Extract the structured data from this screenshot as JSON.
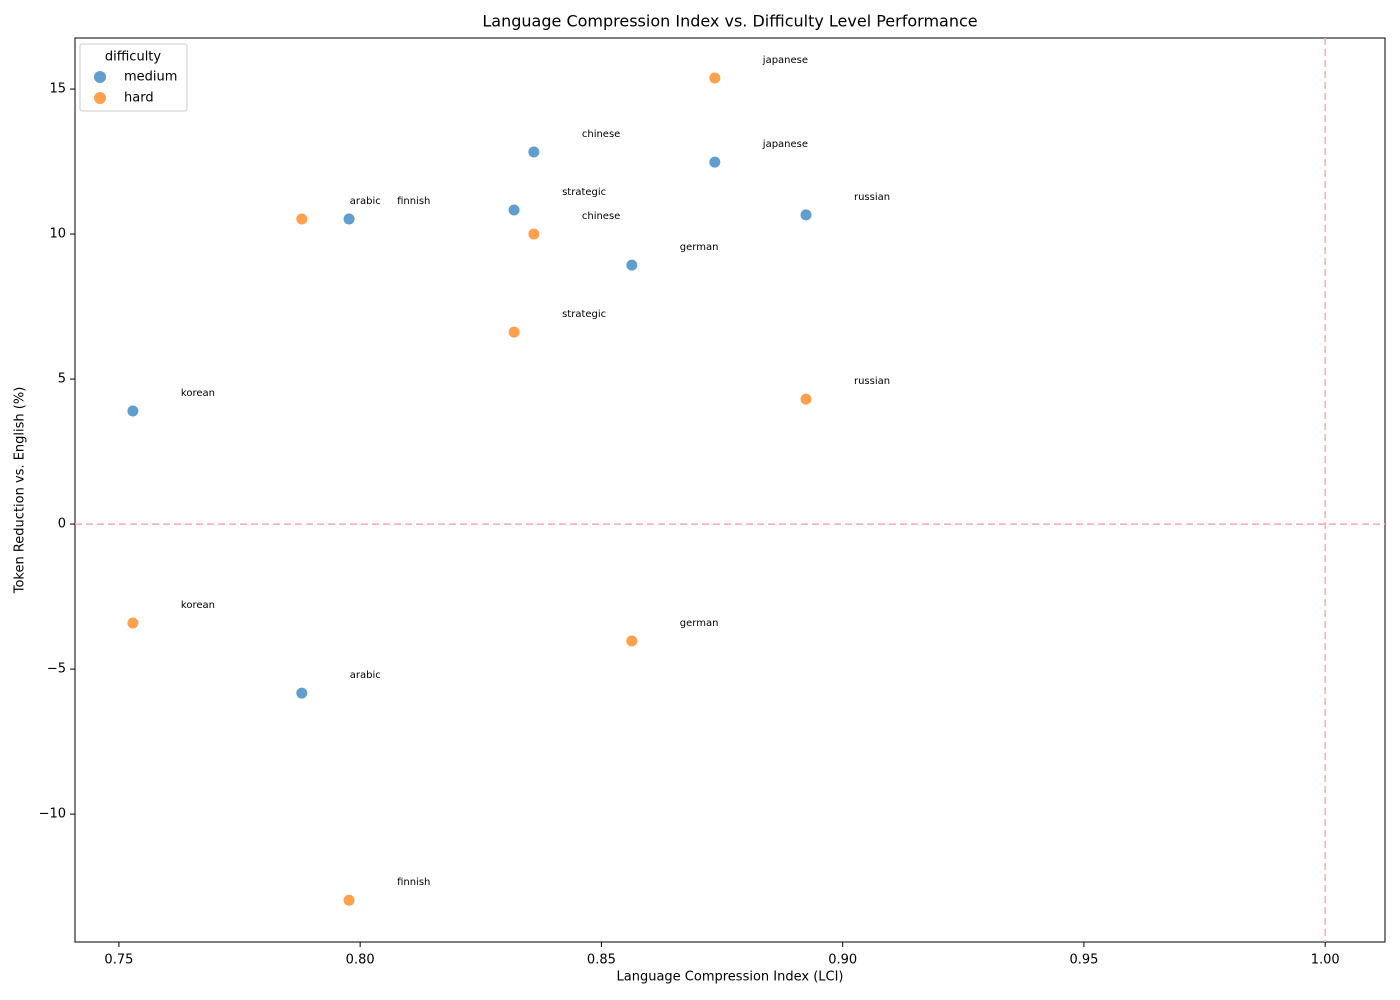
{
  "chart_data": {
    "type": "scatter",
    "title": "Language Compression Index vs. Difficulty Level Performance",
    "x_label": "Language Compression Index (LCI)",
    "y_label": "Token Reduction vs. English (%)",
    "legend_title": "difficulty",
    "legend_position": "upper left",
    "xlim": [
      0.7409,
      1.0124
    ],
    "ylim": [
      -14.41,
      16.76
    ],
    "xticks": [
      0.75,
      {
        "value": 0.8,
        "label": "0.80"
      },
      0.85,
      {
        "value": 0.9,
        "label": "0.90"
      },
      0.95,
      {
        "value": 1.0,
        "label": "1.00"
      }
    ],
    "yticks": [
      {
        "value": -10,
        "label": "−10"
      },
      {
        "value": -5,
        "label": "−5"
      },
      0,
      5,
      10,
      15
    ],
    "reference_lines": {
      "y": 0,
      "x": 1.0,
      "color": "#ffaaaa"
    },
    "series": [
      {
        "name": "medium",
        "color": "#5f9ecf",
        "labels": [
          "korean",
          "arabic",
          "finnish",
          "strategic",
          "chinese",
          "german",
          "japanese",
          "russian"
        ],
        "x": [
          0.7529,
          0.7879,
          0.7977,
          0.8319,
          0.836,
          0.8563,
          0.8735,
          0.8924
        ],
        "values": [
          3.9,
          -5.83,
          10.52,
          10.83,
          12.83,
          8.93,
          12.48,
          10.66
        ]
      },
      {
        "name": "hard",
        "color": "#ffa04d",
        "labels": [
          "korean",
          "arabic",
          "finnish",
          "strategic",
          "chinese",
          "german",
          "japanese",
          "russian"
        ],
        "x": [
          0.7529,
          0.7879,
          0.7977,
          0.8319,
          0.836,
          0.8563,
          0.8735,
          0.8924
        ],
        "values": [
          -3.41,
          10.52,
          -12.97,
          6.62,
          10.0,
          -4.03,
          15.38,
          4.31
        ]
      }
    ]
  }
}
